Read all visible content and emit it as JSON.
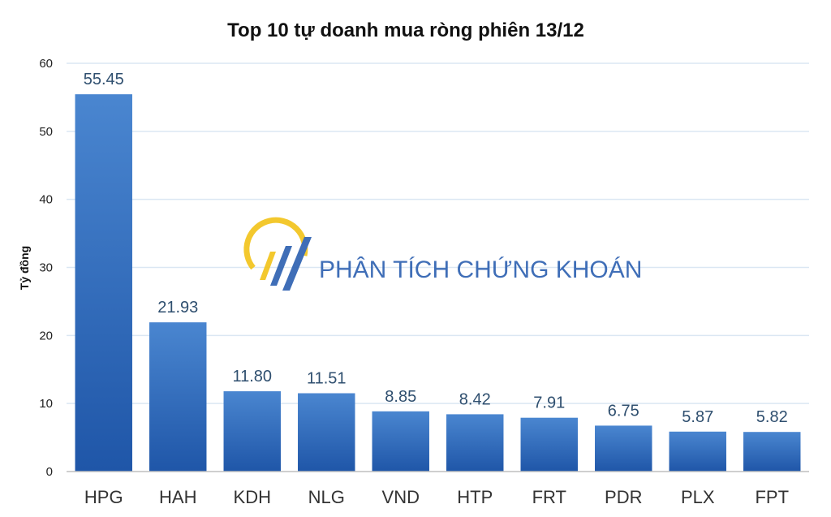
{
  "chart_data": {
    "type": "bar",
    "title": "Top 10 tự doanh mua ròng phiên 13/12",
    "ylabel": "Tỷ đồng",
    "xlabel": "",
    "ylim": [
      0,
      60
    ],
    "yticks": [
      "0",
      "10",
      "20",
      "30",
      "40",
      "50",
      "60"
    ],
    "grid": true,
    "categories": [
      "HPG",
      "HAH",
      "KDH",
      "NLG",
      "VND",
      "HTP",
      "FRT",
      "PDR",
      "PLX",
      "FPT"
    ],
    "values": [
      55.45,
      21.93,
      11.8,
      11.51,
      8.85,
      8.42,
      7.91,
      6.75,
      5.87,
      5.82
    ],
    "value_labels": [
      "55.45",
      "21.93",
      "11.80",
      "11.51",
      "8.85",
      "8.42",
      "7.91",
      "6.75",
      "5.87",
      "5.82"
    ],
    "colors": {
      "bar_top": "#4a86d0",
      "bar_bottom": "#1f56a8",
      "gridline": "#dbe7f3"
    }
  },
  "watermark": {
    "text": "PHÂN TÍCH CHỨNG KHOÁN",
    "colors": {
      "text": "#2b5fb0",
      "arc": "#f2c318"
    }
  }
}
